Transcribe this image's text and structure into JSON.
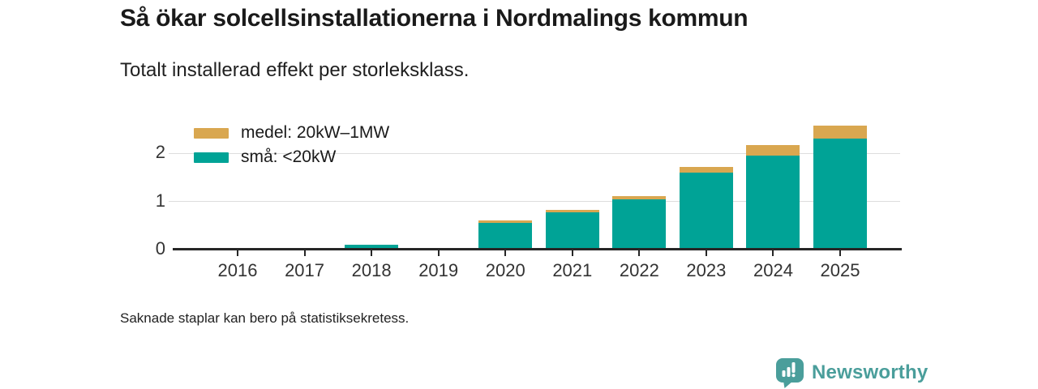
{
  "header": {
    "title": "Så ökar solcellsinstallationerna i Nordmalings kommun",
    "subtitle": "Totalt installerad effekt per storleksklass."
  },
  "legend": {
    "items": [
      {
        "label": "medel: 20kW–1MW",
        "color": "#d9a750"
      },
      {
        "label": "små: <20kW",
        "color": "#00a396"
      }
    ]
  },
  "chart_data": {
    "type": "bar",
    "stacked": true,
    "title": "Så ökar solcellsinstallationerna i Nordmalings kommun",
    "subtitle": "Totalt installerad effekt per storleksklass.",
    "categories": [
      "2016",
      "2017",
      "2018",
      "2019",
      "2020",
      "2021",
      "2022",
      "2023",
      "2024",
      "2025"
    ],
    "series": [
      {
        "name": "små: <20kW",
        "color": "#00a396",
        "values": [
          0,
          0,
          0.1,
          0,
          0.55,
          0.78,
          1.05,
          1.6,
          1.95,
          2.3
        ]
      },
      {
        "name": "medel: 20kW–1MW",
        "color": "#d9a750",
        "values": [
          0,
          0,
          0,
          0,
          0.05,
          0.05,
          0.06,
          0.12,
          0.22,
          0.27
        ]
      }
    ],
    "xlabel": "",
    "ylabel": "",
    "yticks": [
      0,
      1,
      2
    ],
    "ylim": [
      0,
      2.85
    ],
    "grid": true,
    "legend_position": "top-left"
  },
  "footer": {
    "note": "Saknade staplar kan bero på statistiksekretess.",
    "brand": "Newsworthy",
    "brand_color": "#4a9e9b"
  }
}
